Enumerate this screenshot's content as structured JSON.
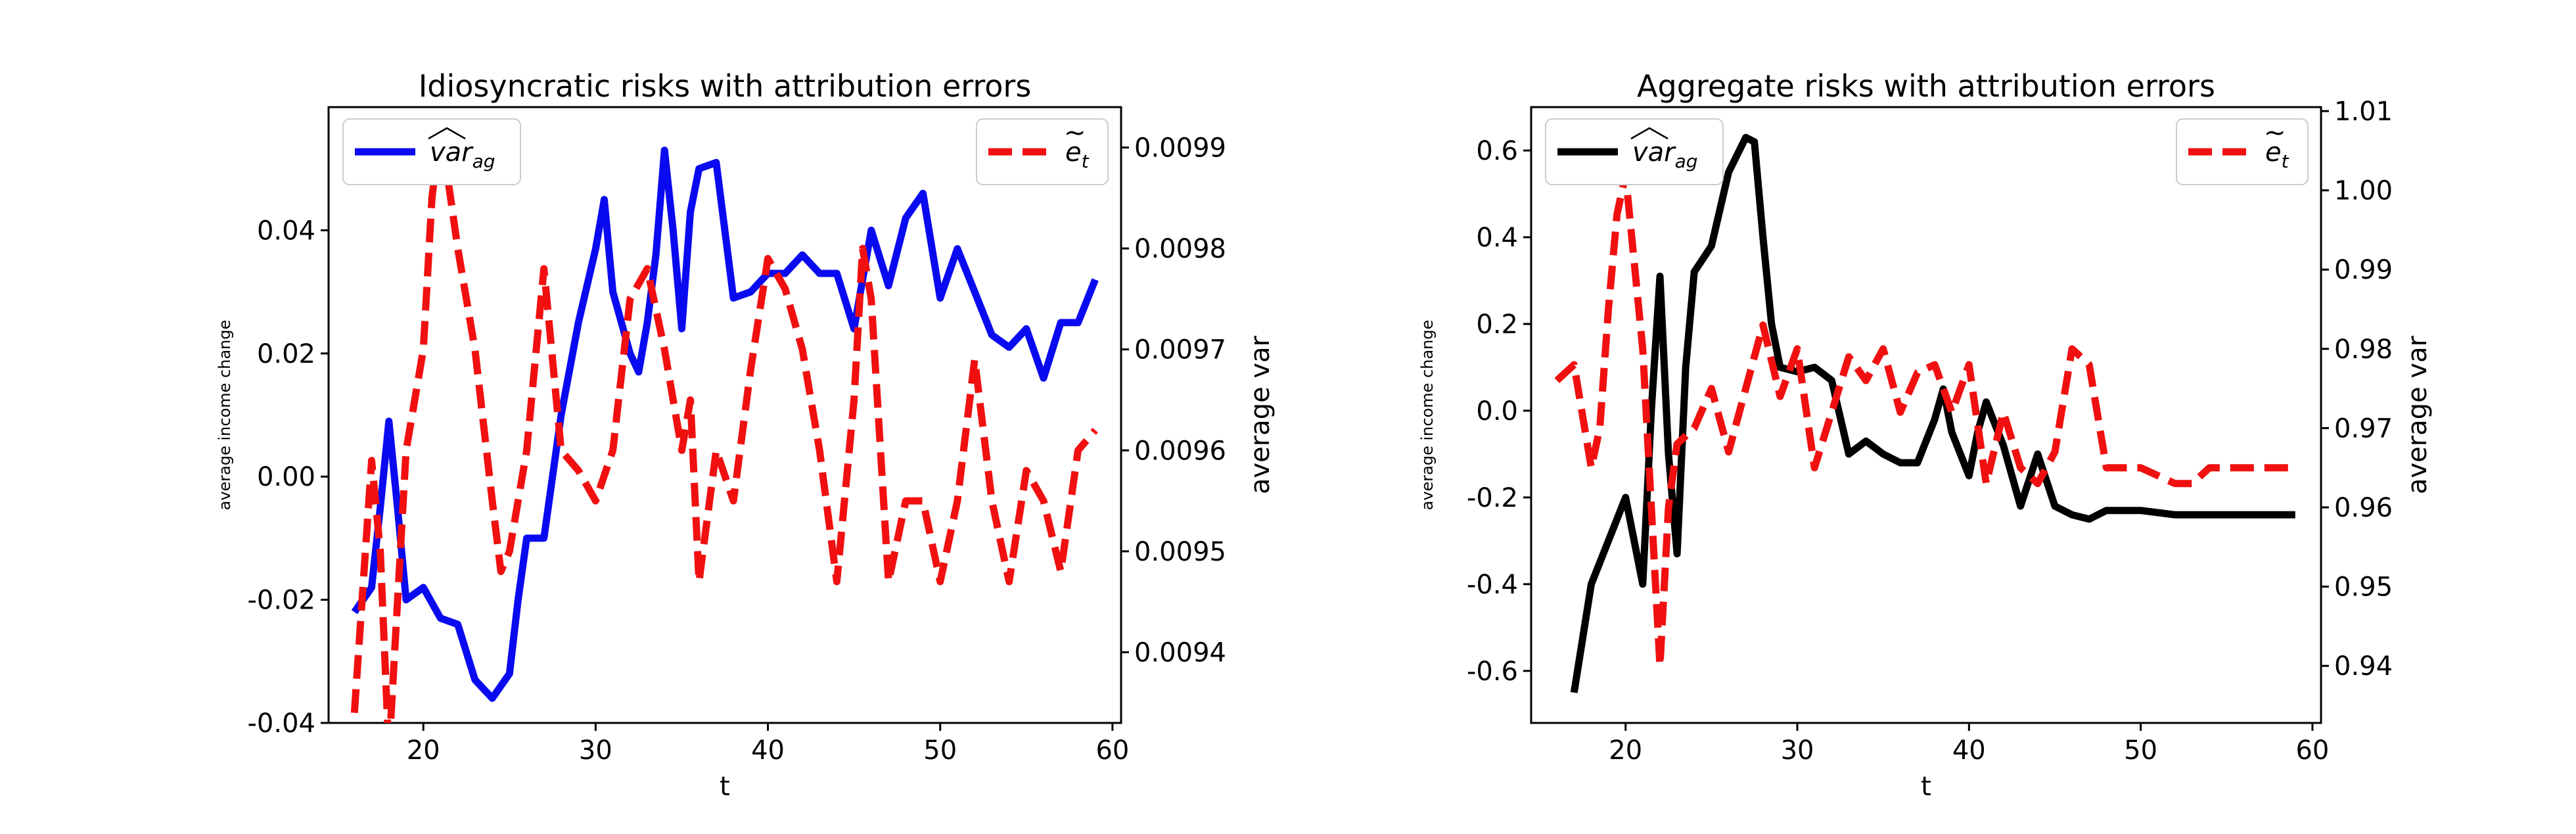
{
  "colors": {
    "var_left": "#0a0af0",
    "var_right": "#000000",
    "e_line": "#f01010"
  },
  "chart_data": [
    {
      "type": "line",
      "title": "Idiosyncratic risks with attribution errors",
      "xlabel": "t",
      "ylabel": "average income change",
      "y2label": "average var",
      "xlim": [
        14.5,
        60.5
      ],
      "ylim": [
        -0.04,
        0.06
      ],
      "y2lim": [
        0.00933,
        0.00994
      ],
      "xticks": [
        "20",
        "30",
        "40",
        "50",
        "60"
      ],
      "yticks": [
        "-0.04",
        "-0.02",
        "0.00",
        "0.02",
        "0.04"
      ],
      "y2ticks": [
        "0.0094",
        "0.0095",
        "0.0096",
        "0.0097",
        "0.0098",
        "0.0099"
      ],
      "legend_left": "var_ag",
      "legend_right": "e_t",
      "legend_left_position": "upper left",
      "legend_right_position": "upper right",
      "grid": false,
      "series": [
        {
          "axis": "left",
          "style": "solid",
          "color": "#0a0af0",
          "points": [
            [
              16,
              -0.022
            ],
            [
              17,
              -0.018
            ],
            [
              17.5,
              -0.005
            ],
            [
              18,
              0.009
            ],
            [
              18.5,
              -0.005
            ],
            [
              19,
              -0.02
            ],
            [
              20,
              -0.018
            ],
            [
              21,
              -0.023
            ],
            [
              22,
              -0.024
            ],
            [
              23,
              -0.033
            ],
            [
              24,
              -0.036
            ],
            [
              25,
              -0.032
            ],
            [
              25.5,
              -0.02
            ],
            [
              26,
              -0.01
            ],
            [
              27,
              -0.01
            ],
            [
              28,
              0.01
            ],
            [
              29,
              0.025
            ],
            [
              30,
              0.037
            ],
            [
              30.5,
              0.045
            ],
            [
              31,
              0.03
            ],
            [
              32,
              0.02
            ],
            [
              32.5,
              0.017
            ],
            [
              33,
              0.025
            ],
            [
              33.5,
              0.036
            ],
            [
              34,
              0.053
            ],
            [
              34.5,
              0.04
            ],
            [
              35,
              0.024
            ],
            [
              35.5,
              0.043
            ],
            [
              36,
              0.05
            ],
            [
              37,
              0.051
            ],
            [
              38,
              0.029
            ],
            [
              39,
              0.03
            ],
            [
              40,
              0.033
            ],
            [
              41,
              0.033
            ],
            [
              42,
              0.036
            ],
            [
              43,
              0.033
            ],
            [
              44,
              0.033
            ],
            [
              45,
              0.024
            ],
            [
              46,
              0.04
            ],
            [
              47,
              0.031
            ],
            [
              48,
              0.042
            ],
            [
              49,
              0.046
            ],
            [
              50,
              0.029
            ],
            [
              51,
              0.037
            ],
            [
              52,
              0.03
            ],
            [
              53,
              0.023
            ],
            [
              54,
              0.021
            ],
            [
              55,
              0.024
            ],
            [
              56,
              0.016
            ],
            [
              57,
              0.025
            ],
            [
              58,
              0.025
            ],
            [
              59,
              0.032
            ]
          ]
        },
        {
          "axis": "right",
          "style": "dashed",
          "color": "#f01010",
          "points": [
            [
              16,
              0.00934
            ],
            [
              17,
              0.00959
            ],
            [
              17.5,
              0.0095
            ],
            [
              18,
              0.0093
            ],
            [
              19,
              0.0096
            ],
            [
              20,
              0.0097
            ],
            [
              20.5,
              0.00985
            ],
            [
              21,
              0.00992
            ],
            [
              22,
              0.0098
            ],
            [
              23,
              0.0097
            ],
            [
              24,
              0.00955
            ],
            [
              24.5,
              0.00948
            ],
            [
              25,
              0.0095
            ],
            [
              26,
              0.0096
            ],
            [
              27,
              0.00978
            ],
            [
              28,
              0.0096
            ],
            [
              29,
              0.00958
            ],
            [
              30,
              0.00955
            ],
            [
              31,
              0.0096
            ],
            [
              32,
              0.00975
            ],
            [
              33,
              0.00978
            ],
            [
              34,
              0.0097
            ],
            [
              35,
              0.0096
            ],
            [
              35.5,
              0.00965
            ],
            [
              36,
              0.00947
            ],
            [
              37,
              0.0096
            ],
            [
              38,
              0.00955
            ],
            [
              39,
              0.00968
            ],
            [
              40,
              0.00979
            ],
            [
              41,
              0.00976
            ],
            [
              42,
              0.0097
            ],
            [
              43,
              0.0096
            ],
            [
              44,
              0.00947
            ],
            [
              45,
              0.00965
            ],
            [
              45.5,
              0.0098
            ],
            [
              46,
              0.00975
            ],
            [
              47,
              0.00947
            ],
            [
              48,
              0.00955
            ],
            [
              49,
              0.00955
            ],
            [
              50,
              0.00947
            ],
            [
              51,
              0.00955
            ],
            [
              52,
              0.00969
            ],
            [
              53,
              0.00955
            ],
            [
              54,
              0.00947
            ],
            [
              55,
              0.00958
            ],
            [
              56,
              0.00955
            ],
            [
              57,
              0.00948
            ],
            [
              58,
              0.0096
            ],
            [
              59,
              0.00962
            ]
          ]
        }
      ]
    },
    {
      "type": "line",
      "title": "Aggregate risks with attribution errors",
      "xlabel": "t",
      "ylabel": "average income change",
      "y2label": "average var",
      "xlim": [
        14.5,
        60.5
      ],
      "ylim": [
        -0.72,
        0.7
      ],
      "y2lim": [
        0.9328,
        1.0105
      ],
      "xticks": [
        "20",
        "30",
        "40",
        "50",
        "60"
      ],
      "yticks": [
        "-0.6",
        "-0.4",
        "-0.2",
        "0.0",
        "0.2",
        "0.4",
        "0.6"
      ],
      "y2ticks": [
        "0.94",
        "0.95",
        "0.96",
        "0.97",
        "0.98",
        "0.99",
        "1.00",
        "1.01"
      ],
      "legend_left": "var_ag",
      "legend_right": "e_t",
      "legend_left_position": "upper left",
      "legend_right_position": "upper right",
      "grid": false,
      "series": [
        {
          "axis": "left",
          "style": "solid",
          "color": "#000000",
          "points": [
            [
              17,
              -0.65
            ],
            [
              18,
              -0.4
            ],
            [
              19,
              -0.3
            ],
            [
              20,
              -0.2
            ],
            [
              21,
              -0.4
            ],
            [
              21.5,
              0.0
            ],
            [
              22,
              0.31
            ],
            [
              22.5,
              -0.1
            ],
            [
              23,
              -0.33
            ],
            [
              23.5,
              0.1
            ],
            [
              24,
              0.32
            ],
            [
              25,
              0.38
            ],
            [
              26,
              0.55
            ],
            [
              27,
              0.63
            ],
            [
              27.5,
              0.62
            ],
            [
              28,
              0.4
            ],
            [
              28.5,
              0.2
            ],
            [
              29,
              0.1
            ],
            [
              30,
              0.09
            ],
            [
              31,
              0.1
            ],
            [
              32,
              0.07
            ],
            [
              33,
              -0.1
            ],
            [
              34,
              -0.07
            ],
            [
              35,
              -0.1
            ],
            [
              36,
              -0.12
            ],
            [
              37,
              -0.12
            ],
            [
              38,
              -0.02
            ],
            [
              38.5,
              0.05
            ],
            [
              39,
              -0.05
            ],
            [
              40,
              -0.15
            ],
            [
              40.5,
              -0.05
            ],
            [
              41,
              0.02
            ],
            [
              42,
              -0.08
            ],
            [
              43,
              -0.22
            ],
            [
              44,
              -0.1
            ],
            [
              45,
              -0.22
            ],
            [
              46,
              -0.24
            ],
            [
              47,
              -0.25
            ],
            [
              48,
              -0.23
            ],
            [
              50,
              -0.23
            ],
            [
              52,
              -0.24
            ],
            [
              53,
              -0.24
            ],
            [
              56,
              -0.24
            ],
            [
              59,
              -0.24
            ]
          ]
        },
        {
          "axis": "right",
          "style": "dashed",
          "color": "#f01010",
          "points": [
            [
              16,
              0.976
            ],
            [
              17,
              0.978
            ],
            [
              18,
              0.965
            ],
            [
              18.5,
              0.97
            ],
            [
              19,
              0.985
            ],
            [
              19.5,
              0.997
            ],
            [
              20,
              1.002
            ],
            [
              21,
              0.98
            ],
            [
              22,
              0.94
            ],
            [
              22.5,
              0.96
            ],
            [
              23,
              0.968
            ],
            [
              24,
              0.97
            ],
            [
              25,
              0.975
            ],
            [
              26,
              0.967
            ],
            [
              27,
              0.975
            ],
            [
              28,
              0.983
            ],
            [
              29,
              0.974
            ],
            [
              30,
              0.98
            ],
            [
              31,
              0.965
            ],
            [
              32,
              0.972
            ],
            [
              33,
              0.979
            ],
            [
              34,
              0.976
            ],
            [
              35,
              0.98
            ],
            [
              36,
              0.972
            ],
            [
              37,
              0.977
            ],
            [
              38,
              0.978
            ],
            [
              39,
              0.972
            ],
            [
              40,
              0.978
            ],
            [
              41,
              0.963
            ],
            [
              42,
              0.972
            ],
            [
              43,
              0.965
            ],
            [
              44,
              0.963
            ],
            [
              45,
              0.967
            ],
            [
              46,
              0.98
            ],
            [
              47,
              0.978
            ],
            [
              48,
              0.965
            ],
            [
              49,
              0.965
            ],
            [
              50,
              0.965
            ],
            [
              51,
              0.964
            ],
            [
              52,
              0.963
            ],
            [
              53,
              0.963
            ],
            [
              54,
              0.965
            ],
            [
              56,
              0.965
            ],
            [
              59,
              0.965
            ]
          ]
        }
      ]
    }
  ]
}
